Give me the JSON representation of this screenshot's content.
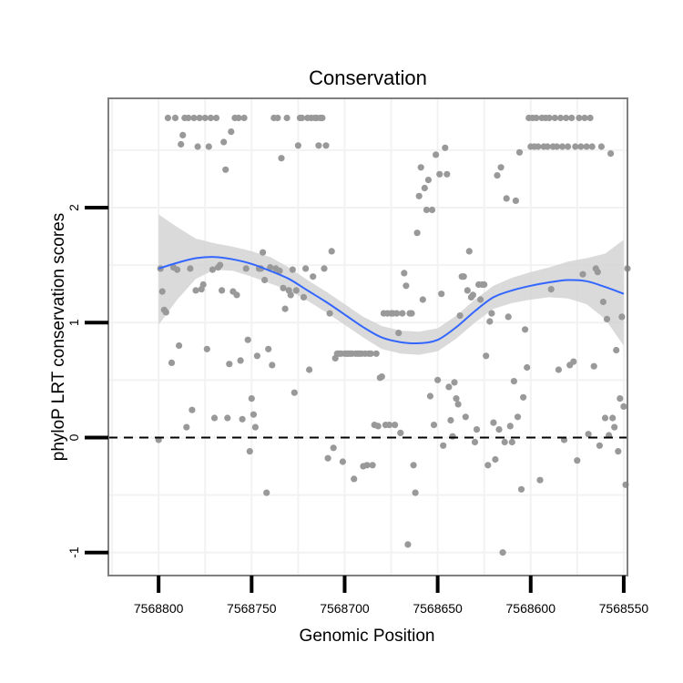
{
  "chart_data": {
    "type": "scatter",
    "title": "Conservation",
    "xlabel": "Genomic Position",
    "ylabel": "phyloP LRT conservation scores",
    "x_reversed": true,
    "xlim": [
      7568827,
      7568548
    ],
    "ylim": [
      -1.2,
      2.95
    ],
    "x_ticks": [
      7568800,
      7568750,
      7568700,
      7568650,
      7568600,
      7568550
    ],
    "x_tick_labels": [
      "7568800",
      "7568750",
      "7568700",
      "7568650",
      "7568600",
      "7568550"
    ],
    "y_ticks": [
      -1,
      0,
      1,
      2
    ],
    "y_tick_labels": [
      "-1",
      "0",
      "1",
      "2"
    ],
    "grid": true,
    "reference_line": {
      "y": 0,
      "style": "dashed"
    },
    "colors": {
      "points": "#999999",
      "smooth_line": "#3366ff",
      "confidence_band": "#d3d3d3",
      "panel_border": "#7f7f7f",
      "grid": "#f2f2f2"
    },
    "points": [
      [
        7568800,
        -0.02
      ],
      [
        7568799,
        1.47
      ],
      [
        7568798,
        1.27
      ],
      [
        7568797,
        1.11
      ],
      [
        7568796,
        1.09
      ],
      [
        7568795,
        2.78
      ],
      [
        7568793,
        0.65
      ],
      [
        7568792,
        1.48
      ],
      [
        7568791,
        2.78
      ],
      [
        7568790,
        1.46
      ],
      [
        7568789,
        0.8
      ],
      [
        7568788,
        2.55
      ],
      [
        7568787,
        2.63
      ],
      [
        7568786,
        2.78
      ],
      [
        7568785,
        0.09
      ],
      [
        7568784,
        2.78
      ],
      [
        7568783,
        1.47
      ],
      [
        7568782,
        0.24
      ],
      [
        7568781,
        2.78
      ],
      [
        7568780,
        1.28
      ],
      [
        7568779,
        2.53
      ],
      [
        7568778,
        2.78
      ],
      [
        7568777,
        1.29
      ],
      [
        7568776,
        1.33
      ],
      [
        7568775,
        2.78
      ],
      [
        7568774,
        0.77
      ],
      [
        7568773,
        2.53
      ],
      [
        7568772,
        2.78
      ],
      [
        7568771,
        1.46
      ],
      [
        7568770,
        0.17
      ],
      [
        7568769,
        2.78
      ],
      [
        7568768,
        1.48
      ],
      [
        7568767,
        1.5
      ],
      [
        7568766,
        1.28
      ],
      [
        7568765,
        2.57
      ],
      [
        7568764,
        2.33
      ],
      [
        7568763,
        0.17
      ],
      [
        7568762,
        0.64
      ],
      [
        7568761,
        2.66
      ],
      [
        7568760,
        1.27
      ],
      [
        7568759,
        2.78
      ],
      [
        7568758,
        1.24
      ],
      [
        7568757,
        2.78
      ],
      [
        7568756,
        0.67
      ],
      [
        7568755,
        0.16
      ],
      [
        7568754,
        2.78
      ],
      [
        7568753,
        1.47
      ],
      [
        7568752,
        0.85
      ],
      [
        7568751,
        -0.12
      ],
      [
        7568750,
        0.34
      ],
      [
        7568749,
        0.2
      ],
      [
        7568748,
        0.09
      ],
      [
        7568747,
        0.71
      ],
      [
        7568746,
        1.47
      ],
      [
        7568745,
        1.47
      ],
      [
        7568744,
        1.61
      ],
      [
        7568743,
        1.37
      ],
      [
        7568742,
        -0.48
      ],
      [
        7568741,
        0.77
      ],
      [
        7568740,
        1.48
      ],
      [
        7568739,
        0.63
      ],
      [
        7568738,
        2.78
      ],
      [
        7568737,
        1.47
      ],
      [
        7568736,
        2.78
      ],
      [
        7568735,
        1.45
      ],
      [
        7568734,
        2.43
      ],
      [
        7568733,
        1.3
      ],
      [
        7568732,
        1.12
      ],
      [
        7568731,
        2.78
      ],
      [
        7568730,
        1.28
      ],
      [
        7568729,
        1.24
      ],
      [
        7568728,
        1.46
      ],
      [
        7568727,
        0.39
      ],
      [
        7568726,
        1.28
      ],
      [
        7568725,
        2.54
      ],
      [
        7568724,
        2.78
      ],
      [
        7568723,
        2.78
      ],
      [
        7568722,
        1.22
      ],
      [
        7568721,
        1.47
      ],
      [
        7568720,
        2.78
      ],
      [
        7568719,
        0.59
      ],
      [
        7568718,
        2.78
      ],
      [
        7568717,
        1.4
      ],
      [
        7568716,
        2.78
      ],
      [
        7568715,
        2.78
      ],
      [
        7568714,
        2.54
      ],
      [
        7568713,
        2.78
      ],
      [
        7568712,
        2.78
      ],
      [
        7568711,
        1.47
      ],
      [
        7568710,
        2.54
      ],
      [
        7568709,
        -0.18
      ],
      [
        7568708,
        1.08
      ],
      [
        7568707,
        1.62
      ],
      [
        7568706,
        -0.09
      ],
      [
        7568705,
        0.69
      ],
      [
        7568704,
        0.73
      ],
      [
        7568703,
        0.73
      ],
      [
        7568702,
        0.73
      ],
      [
        7568701,
        -0.21
      ],
      [
        7568700,
        0.73
      ],
      [
        7568699,
        0.73
      ],
      [
        7568698,
        0.73
      ],
      [
        7568697,
        0.73
      ],
      [
        7568696,
        0.73
      ],
      [
        7568695,
        -0.36
      ],
      [
        7568694,
        0.73
      ],
      [
        7568693,
        0.73
      ],
      [
        7568692,
        0.73
      ],
      [
        7568691,
        0.73
      ],
      [
        7568690,
        -0.25
      ],
      [
        7568689,
        0.73
      ],
      [
        7568688,
        -0.24
      ],
      [
        7568687,
        0.73
      ],
      [
        7568686,
        0.73
      ],
      [
        7568685,
        -0.24
      ],
      [
        7568684,
        0.11
      ],
      [
        7568683,
        0.73
      ],
      [
        7568682,
        0.1
      ],
      [
        7568681,
        0.52
      ],
      [
        7568680,
        0.53
      ],
      [
        7568679,
        1.08
      ],
      [
        7568678,
        0.11
      ],
      [
        7568677,
        1.08
      ],
      [
        7568676,
        0.11
      ],
      [
        7568675,
        1.08
      ],
      [
        7568674,
        1.08
      ],
      [
        7568673,
        0.11
      ],
      [
        7568672,
        1.08
      ],
      [
        7568671,
        0.91
      ],
      [
        7568670,
        0.04
      ],
      [
        7568669,
        1.08
      ],
      [
        7568668,
        1.43
      ],
      [
        7568667,
        1.32
      ],
      [
        7568666,
        -0.93
      ],
      [
        7568665,
        1.08
      ],
      [
        7568664,
        1.08
      ],
      [
        7568663,
        -0.24
      ],
      [
        7568662,
        -0.48
      ],
      [
        7568661,
        1.78
      ],
      [
        7568660,
        2.1
      ],
      [
        7568659,
        2.35
      ],
      [
        7568658,
        1.2
      ],
      [
        7568657,
        2.17
      ],
      [
        7568656,
        1.98
      ],
      [
        7568655,
        2.24
      ],
      [
        7568654,
        0.36
      ],
      [
        7568653,
        1.98
      ],
      [
        7568652,
        0.11
      ],
      [
        7568651,
        2.46
      ],
      [
        7568650,
        0.5
      ],
      [
        7568649,
        2.29
      ],
      [
        7568648,
        1.25
      ],
      [
        7568647,
        -0.07
      ],
      [
        7568646,
        2.52
      ],
      [
        7568645,
        2.29
      ],
      [
        7568644,
        0.44
      ],
      [
        7568643,
        0.15
      ],
      [
        7568642,
        0.01
      ],
      [
        7568641,
        0.48
      ],
      [
        7568640,
        0.34
      ],
      [
        7568639,
        0.29
      ],
      [
        7568638,
        1.06
      ],
      [
        7568637,
        1.4
      ],
      [
        7568636,
        1.4
      ],
      [
        7568635,
        0.18
      ],
      [
        7568634,
        1.28
      ],
      [
        7568633,
        1.62
      ],
      [
        7568632,
        1.22
      ],
      [
        7568631,
        1.24
      ],
      [
        7568630,
        -0.04
      ],
      [
        7568629,
        0.07
      ],
      [
        7568628,
        1.33
      ],
      [
        7568627,
        1.2
      ],
      [
        7568626,
        1.33
      ],
      [
        7568625,
        1.33
      ],
      [
        7568624,
        0.71
      ],
      [
        7568623,
        -0.24
      ],
      [
        7568622,
        1.01
      ],
      [
        7568621,
        1.08
      ],
      [
        7568620,
        0.13
      ],
      [
        7568619,
        -0.19
      ],
      [
        7568618,
        2.28
      ],
      [
        7568617,
        0.07
      ],
      [
        7568616,
        2.35
      ],
      [
        7568615,
        -1.0
      ],
      [
        7568614,
        -0.04
      ],
      [
        7568613,
        2.08
      ],
      [
        7568612,
        1.05
      ],
      [
        7568611,
        0.1
      ],
      [
        7568610,
        -0.04
      ],
      [
        7568609,
        0.49
      ],
      [
        7568608,
        2.06
      ],
      [
        7568607,
        0.18
      ],
      [
        7568606,
        2.48
      ],
      [
        7568605,
        -0.45
      ],
      [
        7568604,
        0.35
      ],
      [
        7568603,
        0.94
      ],
      [
        7568602,
        0.61
      ],
      [
        7568601,
        2.78
      ],
      [
        7568600,
        2.53
      ],
      [
        7568599,
        2.78
      ],
      [
        7568598,
        2.53
      ],
      [
        7568597,
        2.78
      ],
      [
        7568596,
        2.53
      ],
      [
        7568595,
        -0.37
      ],
      [
        7568594,
        2.78
      ],
      [
        7568593,
        2.53
      ],
      [
        7568592,
        2.78
      ],
      [
        7568591,
        2.53
      ],
      [
        7568590,
        2.78
      ],
      [
        7568589,
        1.29
      ],
      [
        7568588,
        2.53
      ],
      [
        7568587,
        2.78
      ],
      [
        7568586,
        2.53
      ],
      [
        7568585,
        0.59
      ],
      [
        7568584,
        2.78
      ],
      [
        7568583,
        2.53
      ],
      [
        7568582,
        -0.02
      ],
      [
        7568581,
        2.78
      ],
      [
        7568580,
        2.53
      ],
      [
        7568579,
        0.63
      ],
      [
        7568578,
        2.78
      ],
      [
        7568577,
        0.66
      ],
      [
        7568576,
        2.53
      ],
      [
        7568575,
        -0.2
      ],
      [
        7568574,
        2.78
      ],
      [
        7568573,
        2.53
      ],
      [
        7568572,
        1.42
      ],
      [
        7568571,
        2.78
      ],
      [
        7568570,
        2.53
      ],
      [
        7568569,
        0.03
      ],
      [
        7568568,
        2.78
      ],
      [
        7568567,
        2.53
      ],
      [
        7568566,
        0.62
      ],
      [
        7568565,
        1.47
      ],
      [
        7568564,
        1.44
      ],
      [
        7568563,
        -0.07
      ],
      [
        7568562,
        2.53
      ],
      [
        7568561,
        1.18
      ],
      [
        7568560,
        0.17
      ],
      [
        7568559,
        1.03
      ],
      [
        7568558,
        0.02
      ],
      [
        7568557,
        2.47
      ],
      [
        7568556,
        0.17
      ],
      [
        7568555,
        0.09
      ],
      [
        7568554,
        0.76
      ],
      [
        7568553,
        -0.12
      ],
      [
        7568552,
        0.34
      ],
      [
        7568551,
        1.05
      ],
      [
        7568550,
        0.27
      ],
      [
        7568549,
        -0.41
      ],
      [
        7568548,
        1.47
      ]
    ],
    "smooth": {
      "x": [
        7568800,
        7568790,
        7568780,
        7568770,
        7568760,
        7568750,
        7568740,
        7568730,
        7568720,
        7568710,
        7568700,
        7568690,
        7568680,
        7568670,
        7568660,
        7568650,
        7568640,
        7568630,
        7568620,
        7568610,
        7568600,
        7568590,
        7568580,
        7568570,
        7568560,
        7568550
      ],
      "y": [
        1.47,
        1.52,
        1.56,
        1.57,
        1.55,
        1.51,
        1.45,
        1.38,
        1.28,
        1.18,
        1.07,
        0.96,
        0.87,
        0.83,
        0.82,
        0.85,
        0.96,
        1.1,
        1.22,
        1.28,
        1.32,
        1.35,
        1.37,
        1.36,
        1.31,
        1.25
      ],
      "upper": [
        1.94,
        1.83,
        1.73,
        1.69,
        1.66,
        1.62,
        1.57,
        1.48,
        1.37,
        1.27,
        1.16,
        1.05,
        0.97,
        0.93,
        0.92,
        0.95,
        1.06,
        1.2,
        1.32,
        1.39,
        1.44,
        1.48,
        1.53,
        1.56,
        1.6,
        1.72
      ],
      "lower": [
        0.98,
        1.2,
        1.38,
        1.46,
        1.45,
        1.4,
        1.34,
        1.28,
        1.19,
        1.09,
        0.98,
        0.87,
        0.77,
        0.73,
        0.72,
        0.75,
        0.86,
        1.0,
        1.12,
        1.17,
        1.2,
        1.22,
        1.21,
        1.16,
        1.03,
        0.8
      ]
    }
  }
}
